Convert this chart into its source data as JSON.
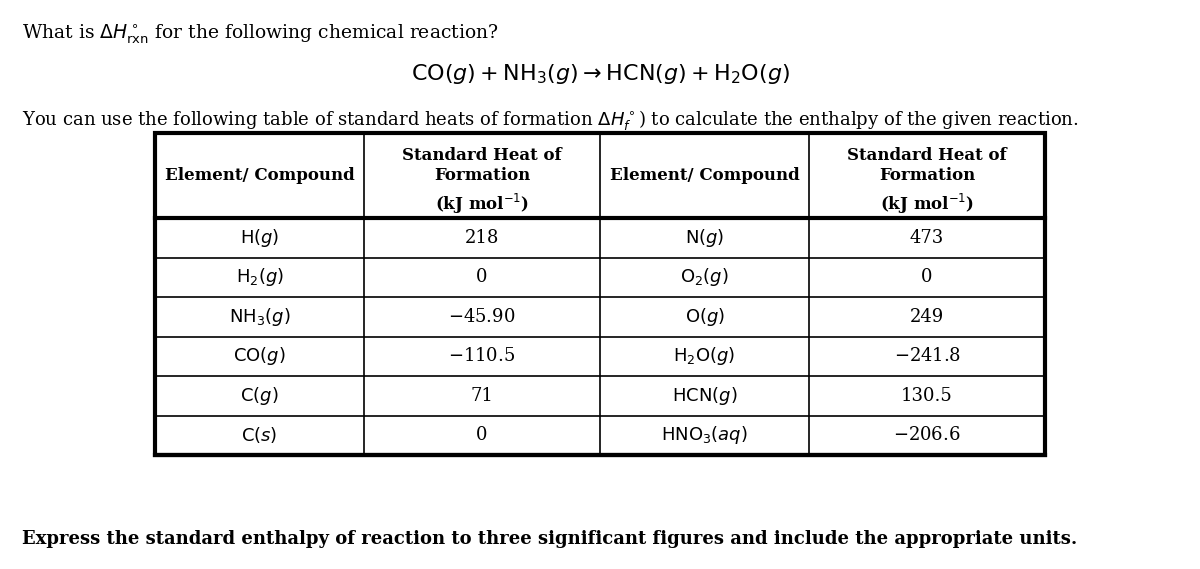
{
  "title_line1": "What is $\\Delta H^\\circ_{\\mathrm{rxn}}$ for the following chemical reaction?",
  "reaction": "$\\mathrm{CO}(g) + \\mathrm{NH_3}(g)\\rightarrow\\mathrm{HCN}(g) + \\mathrm{H_2O}(g)$",
  "table_intro_1": "You can use the following table of standard heats of formation $\\Delta H^\\circ_f$",
  "table_intro_2": ") to calculate the enthalpy of the given reaction.",
  "left_compounds": [
    "$\\mathrm{H}(g)$",
    "$\\mathrm{H_2}(g)$",
    "$\\mathrm{NH_3}(g)$",
    "$\\mathrm{CO}(g)$",
    "$\\mathrm{C}(g)$",
    "$\\mathrm{C}(s)$"
  ],
  "left_values": [
    "218",
    "0",
    "$-$45.90",
    "$-$110.5",
    "71",
    "0"
  ],
  "right_compounds": [
    "$\\mathrm{N}(g)$",
    "$\\mathrm{O_2}(g)$",
    "$\\mathrm{O}(g)$",
    "$\\mathrm{H_2O}(g)$",
    "$\\mathrm{HCN}(g)$",
    "$\\mathrm{HNO_3}(aq)$"
  ],
  "right_values": [
    "473",
    "0",
    "249",
    "$-$241.8",
    "130.5",
    "$-$206.6"
  ],
  "footer": "Express the standard enthalpy of reaction to three significant figures and include the appropriate units.",
  "bg_color": "#ffffff",
  "text_color": "#000000"
}
